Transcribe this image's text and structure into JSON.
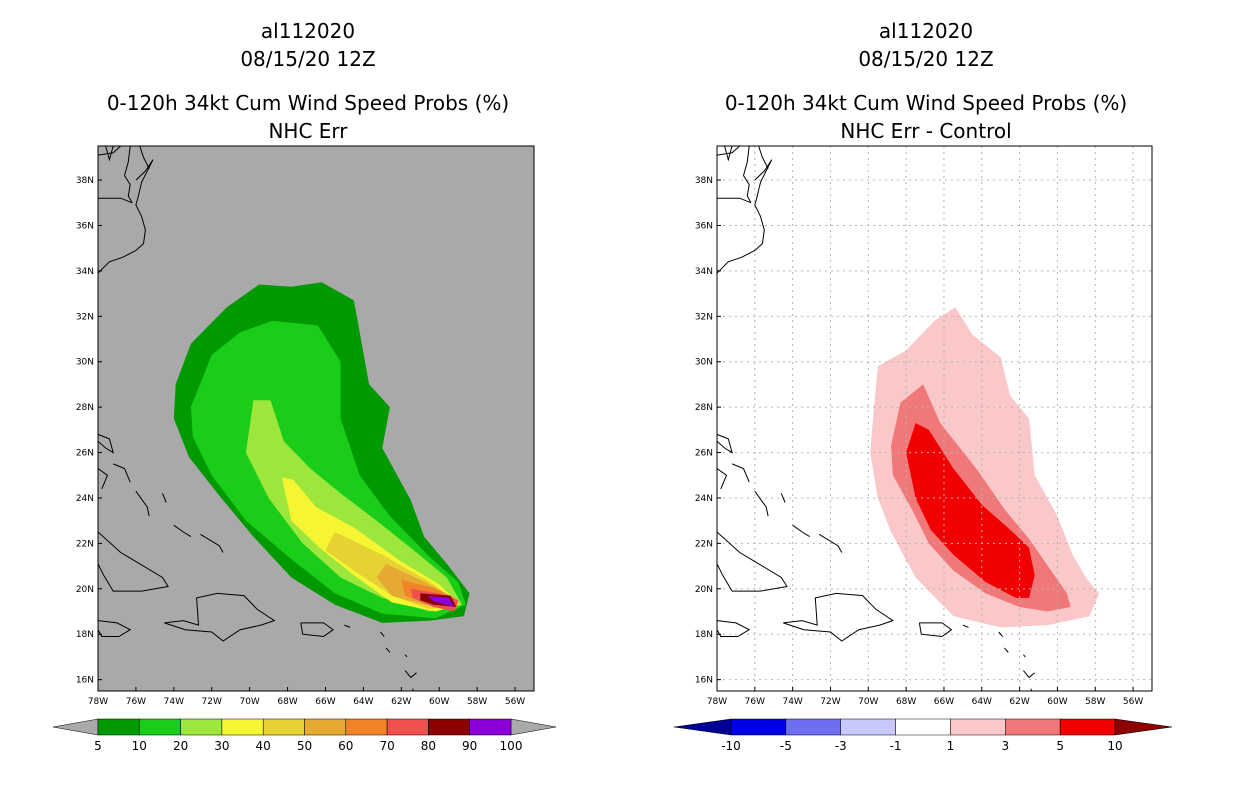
{
  "chart_data": [
    {
      "type": "heatmap",
      "storm_id": "al112020",
      "datetime": "08/15/20 12Z",
      "title": "0-120h 34kt Cum Wind Speed Probs (%)",
      "subtitle": "NHC Err",
      "units": "%",
      "xlim": [
        -78,
        -55
      ],
      "ylim": [
        15.5,
        39.5
      ],
      "x_ticks": [
        -78,
        -76,
        -74,
        -72,
        -70,
        -68,
        -66,
        -64,
        -62,
        -60,
        -58,
        -56
      ],
      "x_tick_labels": [
        "78W",
        "76W",
        "74W",
        "72W",
        "70W",
        "68W",
        "66W",
        "64W",
        "62W",
        "60W",
        "58W",
        "56W"
      ],
      "y_ticks": [
        16,
        18,
        20,
        22,
        24,
        26,
        28,
        30,
        32,
        34,
        36,
        38
      ],
      "y_tick_labels": [
        "16N",
        "18N",
        "20N",
        "22N",
        "24N",
        "26N",
        "28N",
        "30N",
        "32N",
        "34N",
        "36N",
        "38N"
      ],
      "grid": false,
      "background": "#a9a9a9",
      "colorbar": {
        "labels": [
          "5",
          "10",
          "20",
          "30",
          "40",
          "50",
          "60",
          "70",
          "80",
          "90",
          "100"
        ],
        "colors": [
          "#009a00",
          "#19cd19",
          "#9de63c",
          "#f5f532",
          "#e6d232",
          "#e6aa32",
          "#f08228",
          "#f05050",
          "#8c0000",
          "#8c00dc"
        ],
        "under_color": "#a9a9a9",
        "over_color": "#a9a9a9"
      },
      "contours": [
        {
          "level": 5,
          "color": "#009a00",
          "points": [
            [
              -73.9,
              29.0
            ],
            [
              -73.1,
              30.8
            ],
            [
              -71.2,
              32.4
            ],
            [
              -69.5,
              33.4
            ],
            [
              -67.8,
              33.3
            ],
            [
              -66.2,
              33.5
            ],
            [
              -64.5,
              32.7
            ],
            [
              -63.7,
              29.0
            ],
            [
              -62.6,
              28.0
            ],
            [
              -63.0,
              26.2
            ],
            [
              -61.5,
              23.9
            ],
            [
              -60.8,
              22.3
            ],
            [
              -59.5,
              21.0
            ],
            [
              -58.4,
              19.8
            ],
            [
              -58.7,
              18.8
            ],
            [
              -60.5,
              18.6
            ],
            [
              -63.0,
              18.5
            ],
            [
              -65.5,
              19.3
            ],
            [
              -67.8,
              20.5
            ],
            [
              -69.8,
              22.3
            ],
            [
              -71.5,
              24.0
            ],
            [
              -73.2,
              25.8
            ],
            [
              -74.0,
              27.5
            ]
          ]
        },
        {
          "level": 10,
          "color": "#19cd19",
          "points": [
            [
              -73.1,
              28.0
            ],
            [
              -72.0,
              30.3
            ],
            [
              -70.5,
              31.3
            ],
            [
              -68.8,
              31.8
            ],
            [
              -66.4,
              31.6
            ],
            [
              -65.2,
              30.0
            ],
            [
              -65.2,
              27.5
            ],
            [
              -64.2,
              25.0
            ],
            [
              -62.6,
              23.2
            ],
            [
              -60.5,
              21.4
            ],
            [
              -59.0,
              20.3
            ],
            [
              -58.6,
              19.3
            ],
            [
              -60.2,
              18.7
            ],
            [
              -63.0,
              18.9
            ],
            [
              -65.5,
              19.8
            ],
            [
              -67.8,
              21.3
            ],
            [
              -70.2,
              23.0
            ],
            [
              -72.0,
              25.0
            ],
            [
              -73.0,
              26.7
            ]
          ]
        },
        {
          "level": 20,
          "color": "#9de63c",
          "points": [
            [
              -69.8,
              28.3
            ],
            [
              -68.9,
              28.3
            ],
            [
              -68.2,
              26.5
            ],
            [
              -66.8,
              25.3
            ],
            [
              -65.2,
              24.2
            ],
            [
              -63.3,
              23.0
            ],
            [
              -61.2,
              21.6
            ],
            [
              -59.6,
              20.5
            ],
            [
              -58.8,
              19.3
            ],
            [
              -60.5,
              19.0
            ],
            [
              -63.0,
              19.6
            ],
            [
              -65.2,
              20.5
            ],
            [
              -67.2,
              22.0
            ],
            [
              -69.0,
              24.0
            ],
            [
              -70.2,
              26.0
            ]
          ]
        },
        {
          "level": 30,
          "color": "#f5f532",
          "points": [
            [
              -68.3,
              24.9
            ],
            [
              -67.7,
              24.8
            ],
            [
              -66.5,
              23.6
            ],
            [
              -64.5,
              22.7
            ],
            [
              -62.0,
              21.2
            ],
            [
              -60.0,
              20.2
            ],
            [
              -58.9,
              19.3
            ],
            [
              -60.2,
              19.0
            ],
            [
              -62.5,
              19.4
            ],
            [
              -64.5,
              20.6
            ],
            [
              -66.3,
              21.8
            ],
            [
              -67.8,
              23.0
            ]
          ]
        },
        {
          "level": 40,
          "color": "#e6d232",
          "points": [
            [
              -65.5,
              22.5
            ],
            [
              -63.0,
              21.5
            ],
            [
              -60.5,
              20.3
            ],
            [
              -59.0,
              19.4
            ],
            [
              -60.5,
              19.1
            ],
            [
              -62.5,
              19.7
            ],
            [
              -64.5,
              20.8
            ],
            [
              -66.0,
              21.7
            ]
          ]
        },
        {
          "level": 50,
          "color": "#e6aa32",
          "points": [
            [
              -62.8,
              21.1
            ],
            [
              -61.0,
              20.4
            ],
            [
              -59.2,
              19.6
            ],
            [
              -59.0,
              19.3
            ],
            [
              -60.8,
              19.3
            ],
            [
              -62.5,
              19.7
            ],
            [
              -63.3,
              20.5
            ]
          ]
        },
        {
          "level": 60,
          "color": "#f08228",
          "points": [
            [
              -62.0,
              20.4
            ],
            [
              -60.2,
              20.0
            ],
            [
              -59.0,
              19.5
            ],
            [
              -59.1,
              19.1
            ],
            [
              -60.6,
              19.3
            ],
            [
              -61.8,
              19.7
            ]
          ]
        },
        {
          "level": 70,
          "color": "#f05050",
          "points": [
            [
              -61.5,
              20.0
            ],
            [
              -60.0,
              19.8
            ],
            [
              -59.0,
              19.5
            ],
            [
              -59.2,
              19.0
            ],
            [
              -60.3,
              19.2
            ],
            [
              -61.4,
              19.6
            ]
          ]
        },
        {
          "level": 80,
          "color": "#8c0000",
          "points": [
            [
              -61.0,
              19.8
            ],
            [
              -59.4,
              19.7
            ],
            [
              -59.1,
              19.2
            ],
            [
              -60.3,
              19.3
            ],
            [
              -61.0,
              19.5
            ]
          ]
        },
        {
          "level": 90,
          "color": "#8c00dc",
          "points": [
            [
              -60.6,
              19.7
            ],
            [
              -59.5,
              19.6
            ],
            [
              -59.2,
              19.2
            ],
            [
              -60.3,
              19.45
            ]
          ]
        }
      ]
    },
    {
      "type": "heatmap",
      "storm_id": "al112020",
      "datetime": "08/15/20 12Z",
      "title": "0-120h 34kt Cum Wind Speed Probs (%)",
      "subtitle": "NHC Err - Control",
      "units": "%",
      "xlim": [
        -78,
        -55
      ],
      "ylim": [
        15.5,
        39.5
      ],
      "x_ticks": [
        -78,
        -76,
        -74,
        -72,
        -70,
        -68,
        -66,
        -64,
        -62,
        -60,
        -58,
        -56
      ],
      "x_tick_labels": [
        "78W",
        "76W",
        "74W",
        "72W",
        "70W",
        "68W",
        "66W",
        "64W",
        "62W",
        "60W",
        "58W",
        "56W"
      ],
      "y_ticks": [
        16,
        18,
        20,
        22,
        24,
        26,
        28,
        30,
        32,
        34,
        36,
        38
      ],
      "y_tick_labels": [
        "16N",
        "18N",
        "20N",
        "22N",
        "24N",
        "26N",
        "28N",
        "30N",
        "32N",
        "34N",
        "36N",
        "38N"
      ],
      "grid": true,
      "background": "#ffffff",
      "colorbar": {
        "labels": [
          "-10",
          "-5",
          "-3",
          "-1",
          "1",
          "3",
          "5",
          "10"
        ],
        "colors": [
          "#0000e6",
          "#6e6ef0",
          "#c8c8fa",
          "#ffffff",
          "#fac8c8",
          "#f07878",
          "#f00000"
        ],
        "under_color": "#000096",
        "over_color": "#8c0000"
      },
      "contours": [
        {
          "level": 1,
          "color": "#fac8c8",
          "points": [
            [
              -69.7,
              28.0
            ],
            [
              -69.5,
              29.8
            ],
            [
              -68.0,
              30.5
            ],
            [
              -66.5,
              31.8
            ],
            [
              -65.4,
              32.4
            ],
            [
              -64.5,
              31.2
            ],
            [
              -63.0,
              30.2
            ],
            [
              -62.5,
              28.5
            ],
            [
              -61.5,
              27.5
            ],
            [
              -61.2,
              25.0
            ],
            [
              -60.0,
              23.2
            ],
            [
              -59.2,
              21.5
            ],
            [
              -58.5,
              20.5
            ],
            [
              -57.8,
              19.8
            ],
            [
              -58.3,
              18.8
            ],
            [
              -60.5,
              18.4
            ],
            [
              -63.0,
              18.3
            ],
            [
              -65.5,
              18.8
            ],
            [
              -67.5,
              20.5
            ],
            [
              -68.8,
              22.5
            ],
            [
              -69.5,
              24.0
            ],
            [
              -69.9,
              26.0
            ]
          ]
        },
        {
          "level": 3,
          "color": "#f07878",
          "points": [
            [
              -68.8,
              26.3
            ],
            [
              -68.3,
              28.2
            ],
            [
              -67.1,
              29.0
            ],
            [
              -66.2,
              27.3
            ],
            [
              -64.2,
              25.2
            ],
            [
              -62.8,
              23.5
            ],
            [
              -61.5,
              22.2
            ],
            [
              -60.5,
              21.0
            ],
            [
              -59.5,
              19.8
            ],
            [
              -59.3,
              19.2
            ],
            [
              -60.5,
              19.0
            ],
            [
              -62.0,
              19.2
            ],
            [
              -63.8,
              19.8
            ],
            [
              -65.5,
              20.8
            ],
            [
              -66.8,
              22.0
            ],
            [
              -67.7,
              23.5
            ],
            [
              -68.7,
              25.0
            ]
          ]
        },
        {
          "level": 5,
          "color": "#f00000",
          "points": [
            [
              -68.0,
              26.0
            ],
            [
              -67.5,
              27.3
            ],
            [
              -66.8,
              27.0
            ],
            [
              -65.5,
              25.3
            ],
            [
              -64.0,
              23.7
            ],
            [
              -62.5,
              22.6
            ],
            [
              -61.5,
              21.8
            ],
            [
              -61.2,
              20.6
            ],
            [
              -61.5,
              19.6
            ],
            [
              -62.2,
              19.6
            ],
            [
              -63.8,
              20.3
            ],
            [
              -65.5,
              21.5
            ],
            [
              -66.7,
              22.6
            ],
            [
              -67.5,
              24.0
            ]
          ]
        }
      ]
    }
  ]
}
